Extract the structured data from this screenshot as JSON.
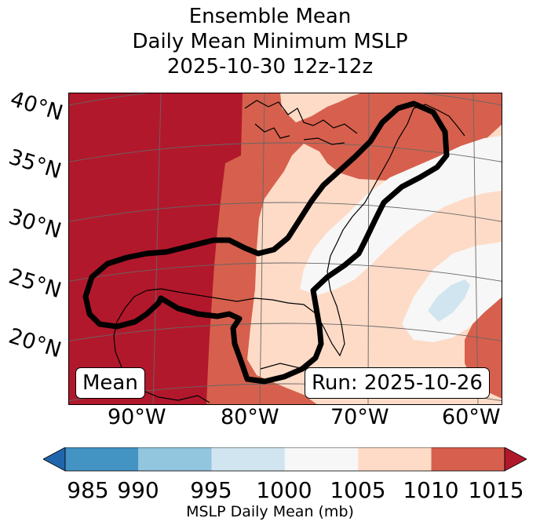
{
  "title": {
    "line1": "Ensemble Mean",
    "line2": "Daily Mean Minimum MSLP",
    "line3": "2025-10-30 12z-12z"
  },
  "map": {
    "lat_labels": [
      "40°N",
      "35°N",
      "30°N",
      "25°N",
      "20°N"
    ],
    "lon_labels": [
      "90°W",
      "80°W",
      "70°W",
      "60°W"
    ],
    "stat_box": "Mean",
    "run_box": "Run: 2025-10-26",
    "colors": {
      "c985": "#2166ac",
      "c990": "#4393c3",
      "c995": "#92c5de",
      "c1000": "#d1e5f0",
      "c1005": "#f7f7f7",
      "c1010": "#fddbc7",
      "c1015": "#d6604d",
      "cover": "#b2182b",
      "land": "#000000",
      "contour": "#000000"
    }
  },
  "colorbar": {
    "ticks": [
      "985",
      "990",
      "995",
      "1000",
      "1005",
      "1010",
      "1015"
    ],
    "label": "MSLP Daily Mean (mb)",
    "bins": [
      {
        "range": "985-990",
        "color": "#4393c3"
      },
      {
        "range": "990-995",
        "color": "#92c5de"
      },
      {
        "range": "995-1000",
        "color": "#d1e5f0"
      },
      {
        "range": "1000-1005",
        "color": "#f7f7f7"
      },
      {
        "range": "1005-1010",
        "color": "#fddbc7"
      },
      {
        "range": "1010-1015",
        "color": "#d6604d"
      }
    ],
    "under_color": "#2166ac",
    "over_color": "#b2182b"
  }
}
